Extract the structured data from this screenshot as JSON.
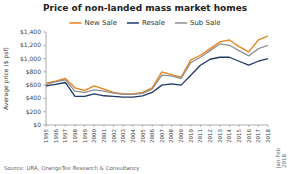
{
  "chart_data": {
    "type": "line",
    "title": "Price of non-landed mass market homes",
    "y_label": "Average price ($ psf)",
    "annotations": [
      "Source: URA, OrangeTee Research & Consultancy",
      "Jan-Feb\n2018"
    ],
    "categories": [
      "1995",
      "1996",
      "1997",
      "1998",
      "1999",
      "2000",
      "2001",
      "2002",
      "2003",
      "2004",
      "2005",
      "2006",
      "2007",
      "2008",
      "2009",
      "2010",
      "2011",
      "2012",
      "2013",
      "2014",
      "2015",
      "2016",
      "2017",
      "2018"
    ],
    "series": [
      {
        "name": "New Sale",
        "color": "#E8821A",
        "values": [
          630,
          660,
          700,
          560,
          520,
          590,
          540,
          490,
          470,
          470,
          490,
          560,
          800,
          760,
          720,
          980,
          1050,
          1150,
          1250,
          1280,
          1180,
          1100,
          1280,
          1340
        ]
      },
      {
        "name": "Resale",
        "color": "#1F3864",
        "values": [
          590,
          610,
          640,
          430,
          430,
          470,
          440,
          430,
          420,
          420,
          440,
          490,
          600,
          620,
          600,
          750,
          900,
          990,
          1020,
          1020,
          960,
          900,
          960,
          1000
        ]
      },
      {
        "name": "Sub Sale",
        "color": "#909090",
        "values": [
          610,
          650,
          680,
          510,
          490,
          530,
          510,
          480,
          460,
          460,
          475,
          540,
          750,
          740,
          700,
          940,
          1020,
          1120,
          1220,
          1200,
          1120,
          1040,
          1150,
          1200
        ]
      }
    ],
    "ylim": [
      0,
      1400
    ],
    "yticks": [
      {
        "value": 0,
        "label": "$0"
      },
      {
        "value": 200,
        "label": "$200"
      },
      {
        "value": 400,
        "label": "$400"
      },
      {
        "value": 600,
        "label": "$600"
      },
      {
        "value": 800,
        "label": "$800"
      },
      {
        "value": 1000,
        "label": "$1,000"
      },
      {
        "value": 1200,
        "label": "$1,200"
      },
      {
        "value": 1400,
        "label": "$1,400"
      }
    ],
    "grid": false,
    "legend": "top"
  }
}
